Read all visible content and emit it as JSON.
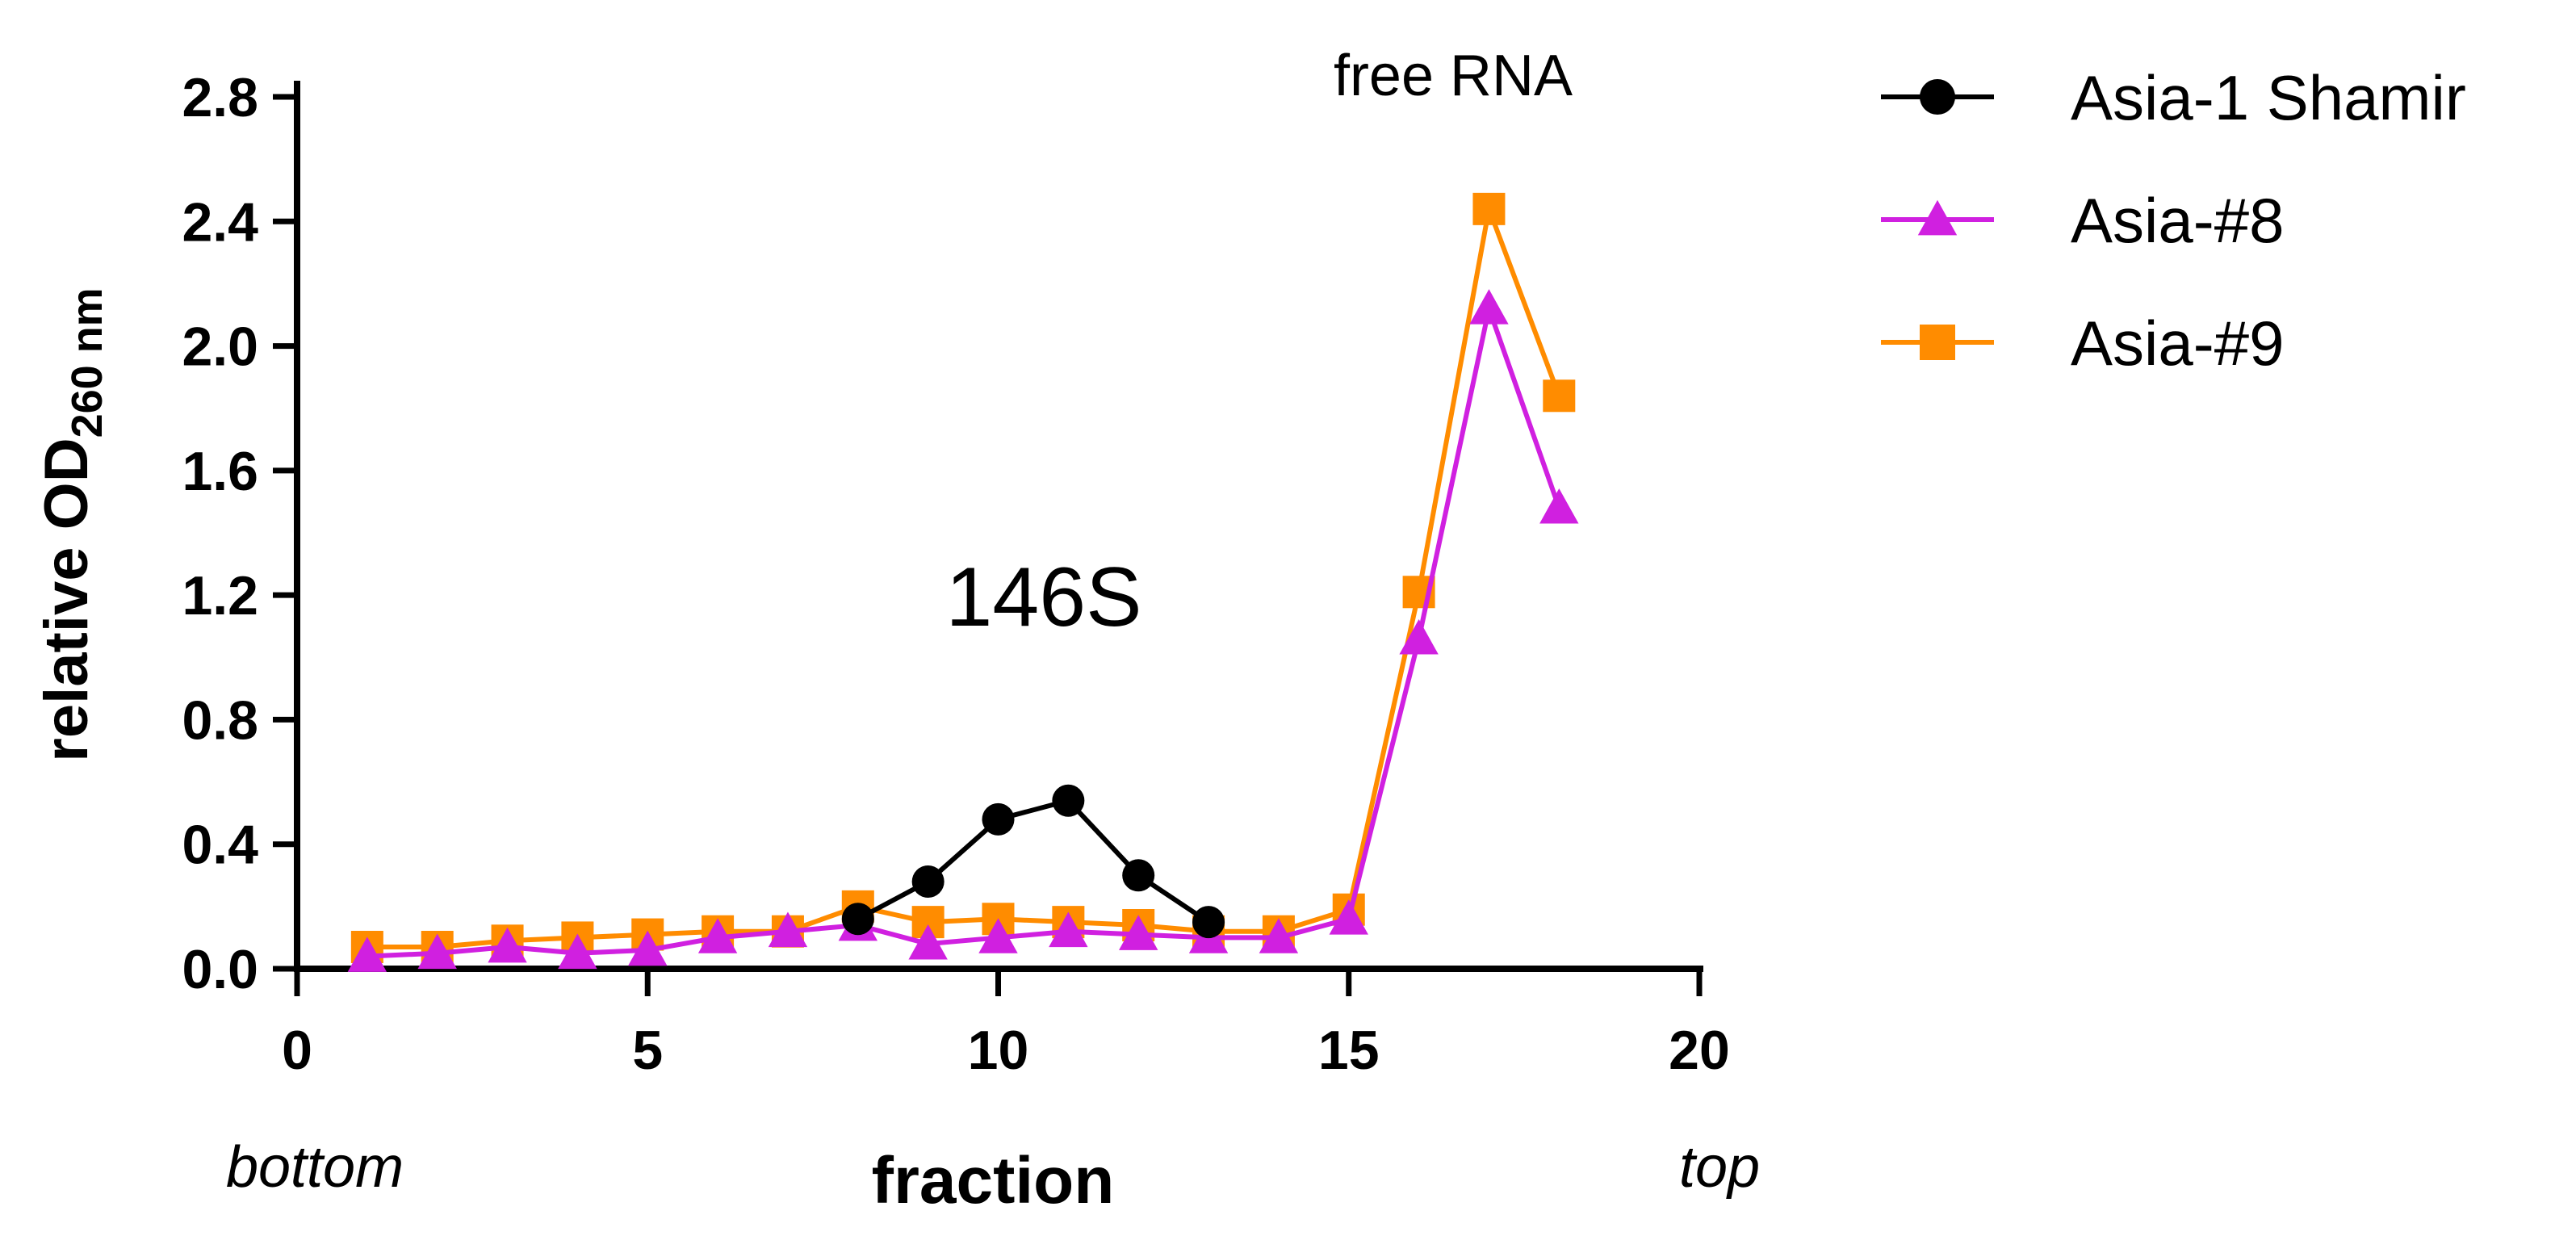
{
  "chart_data": {
    "type": "line",
    "xlabel": "fraction",
    "ylabel_main": "relative OD",
    "ylabel_sub": "260 nm",
    "xlim": [
      0,
      20
    ],
    "ylim": [
      0,
      2.8
    ],
    "x_ticks": [
      "0",
      "5",
      "10",
      "15",
      "20"
    ],
    "y_ticks": [
      "0.0",
      "0.4",
      "0.8",
      "1.2",
      "1.6",
      "2.0",
      "2.4",
      "2.8"
    ],
    "grid": false,
    "legend_position": "right",
    "annotations": {
      "free_rna": "free RNA",
      "peak_146s": "146S",
      "bottom": "bottom",
      "top": "top"
    },
    "series": [
      {
        "name": "Asia-1 Shamir",
        "color": "#000000",
        "marker": "circle",
        "points": [
          [
            8,
            0.16
          ],
          [
            9,
            0.28
          ],
          [
            10,
            0.48
          ],
          [
            11,
            0.54
          ],
          [
            12,
            0.3
          ],
          [
            13,
            0.15
          ]
        ]
      },
      {
        "name": "Asia-#8",
        "color": "#d020e0",
        "marker": "triangle",
        "points": [
          [
            1,
            0.04
          ],
          [
            2,
            0.05
          ],
          [
            3,
            0.07
          ],
          [
            4,
            0.05
          ],
          [
            5,
            0.06
          ],
          [
            6,
            0.1
          ],
          [
            7,
            0.12
          ],
          [
            8,
            0.14
          ],
          [
            9,
            0.08
          ],
          [
            10,
            0.1
          ],
          [
            11,
            0.12
          ],
          [
            12,
            0.11
          ],
          [
            13,
            0.1
          ],
          [
            14,
            0.1
          ],
          [
            15,
            0.16
          ],
          [
            16,
            1.06
          ],
          [
            17,
            2.12
          ],
          [
            18,
            1.48
          ]
        ]
      },
      {
        "name": "Asia-#9",
        "color": "#ff8c00",
        "marker": "square",
        "points": [
          [
            1,
            0.07
          ],
          [
            2,
            0.07
          ],
          [
            3,
            0.09
          ],
          [
            4,
            0.1
          ],
          [
            5,
            0.11
          ],
          [
            6,
            0.12
          ],
          [
            7,
            0.12
          ],
          [
            8,
            0.2
          ],
          [
            9,
            0.15
          ],
          [
            10,
            0.16
          ],
          [
            11,
            0.15
          ],
          [
            12,
            0.14
          ],
          [
            13,
            0.12
          ],
          [
            14,
            0.12
          ],
          [
            15,
            0.19
          ],
          [
            16,
            1.21
          ],
          [
            17,
            2.44
          ],
          [
            18,
            1.84
          ]
        ]
      }
    ]
  }
}
